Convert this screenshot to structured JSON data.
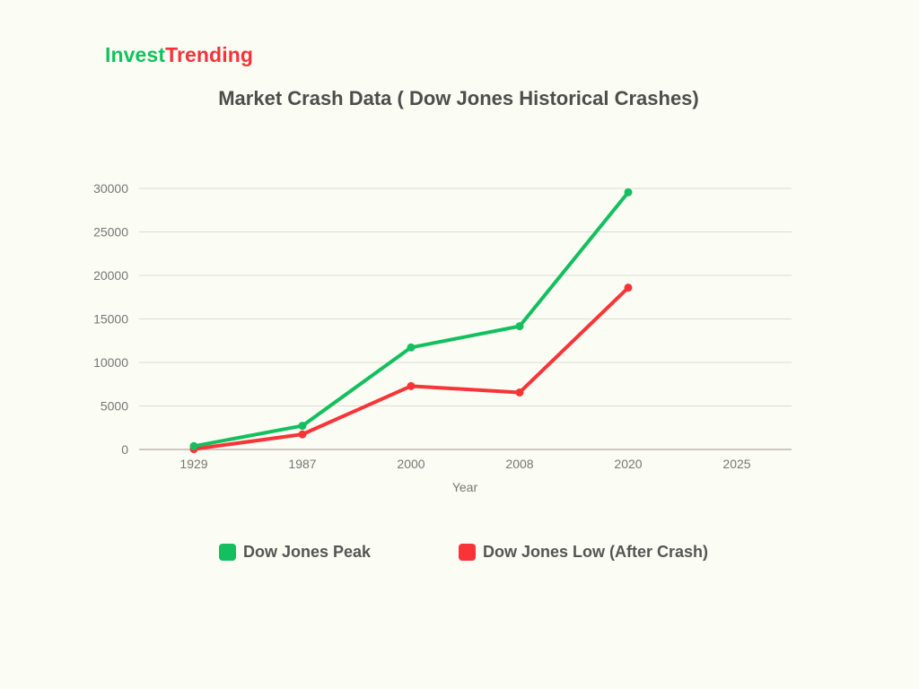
{
  "brand": {
    "part1": "Invest",
    "part2": "Trending",
    "color1": "#16c060",
    "color2": "#f5333a"
  },
  "chart_data": {
    "type": "line",
    "title": "Market Crash Data ( Dow Jones Historical Crashes)",
    "xlabel": "Year",
    "ylabel": "",
    "categories": [
      "1929",
      "1987",
      "2000",
      "2008",
      "2020",
      "2025"
    ],
    "ylim": [
      0,
      30000
    ],
    "yticks": [
      "0",
      "5000",
      "10000",
      "15000",
      "20000",
      "25000",
      "30000"
    ],
    "grid": true,
    "legend_position": "bottom",
    "series": [
      {
        "name": "Dow Jones Peak",
        "color": "#13bf5f",
        "values": [
          381,
          2722,
          11723,
          14164,
          29551,
          null
        ]
      },
      {
        "name": "Dow Jones Low (After Crash)",
        "color": "#f83438",
        "values": [
          41,
          1739,
          7286,
          6547,
          18592,
          null
        ]
      }
    ]
  }
}
